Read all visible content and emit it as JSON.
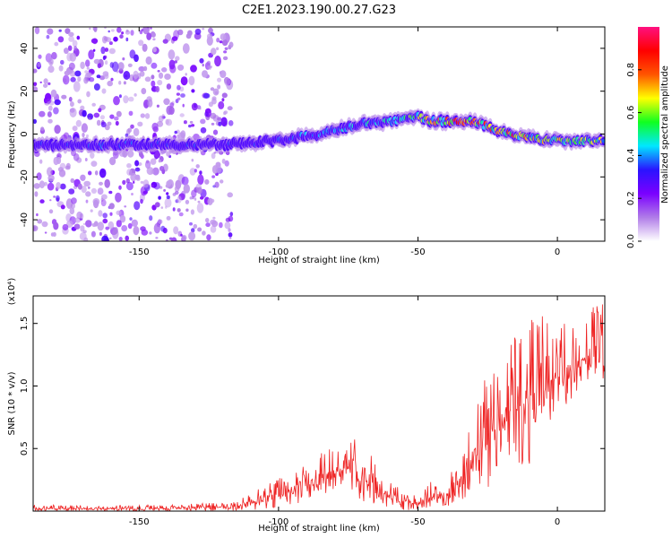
{
  "title": "C2E1.2023.190.00.27.G23",
  "chart_data": [
    {
      "type": "heatmap",
      "xlabel": "Height of straight line (km)",
      "ylabel": "Frequency (Hz)",
      "xlim": [
        -188,
        17
      ],
      "ylim": [
        -50,
        50
      ],
      "xticks": [
        -150,
        -100,
        -50,
        0
      ],
      "yticks": [
        -40,
        -20,
        0,
        20,
        40
      ],
      "colorbar": {
        "label": "Normalized spectral amplitude",
        "range": [
          0,
          1
        ],
        "ticks": [
          "0.0",
          "0.2",
          "0.4",
          "0.6",
          "0.8"
        ],
        "tick_values": [
          0.0,
          0.2,
          0.4,
          0.6,
          0.8
        ],
        "colormap": [
          "#ffffff",
          "#b07ce8",
          "#7a00ff",
          "#2a14ff",
          "#00e8ff",
          "#10ff20",
          "#ffff00",
          "#ff5500",
          "#ff0000",
          "#ff1080"
        ]
      },
      "noise_region_x": [
        -188,
        -120
      ],
      "ridge": {
        "x": [
          -188,
          -150,
          -120,
          -100,
          -85,
          -70,
          -60,
          -50,
          -45,
          -40,
          -30,
          -20,
          -10,
          0,
          17
        ],
        "frequency": [
          -5,
          -5,
          -5,
          -3,
          0,
          5,
          6,
          8,
          6,
          6,
          6,
          1,
          -2,
          -3,
          -3
        ],
        "peak_amplitude": [
          0.35,
          0.4,
          0.35,
          0.4,
          0.45,
          0.5,
          0.55,
          0.7,
          0.85,
          0.95,
          0.9,
          0.95,
          0.8,
          0.75,
          0.7
        ]
      }
    },
    {
      "type": "line",
      "xlabel": "Height of straight line (km)",
      "ylabel": "SNR (10 * v/v)",
      "y_multiplier": "(x10⁴)",
      "xlim": [
        -188,
        17
      ],
      "ylim": [
        0,
        1.72
      ],
      "xticks": [
        -150,
        -100,
        -50,
        0
      ],
      "yticks": [
        0.5,
        1.0,
        1.5
      ],
      "ytick_labels": [
        "0.5",
        "1.0",
        "1.5"
      ],
      "color": "#ee2222",
      "envelope": {
        "x": [
          -188,
          -140,
          -120,
          -110,
          -100,
          -90,
          -80,
          -75,
          -70,
          -65,
          -60,
          -55,
          -50,
          -45,
          -42,
          -40,
          -35,
          -30,
          -25,
          -20,
          -15,
          -10,
          -5,
          0,
          5,
          10,
          17
        ],
        "mean": [
          0.02,
          0.02,
          0.03,
          0.06,
          0.12,
          0.2,
          0.32,
          0.35,
          0.3,
          0.18,
          0.1,
          0.08,
          0.05,
          0.12,
          0.15,
          0.05,
          0.25,
          0.5,
          0.6,
          0.72,
          0.8,
          0.92,
          1.0,
          1.08,
          1.15,
          1.2,
          1.28
        ],
        "max": [
          0.05,
          0.05,
          0.07,
          0.14,
          0.28,
          0.38,
          0.57,
          0.52,
          0.7,
          0.38,
          0.25,
          0.18,
          0.12,
          0.25,
          0.28,
          0.15,
          0.55,
          0.9,
          1.2,
          1.22,
          1.47,
          1.72,
          1.55,
          1.47,
          1.6,
          1.62,
          1.66
        ]
      }
    }
  ]
}
